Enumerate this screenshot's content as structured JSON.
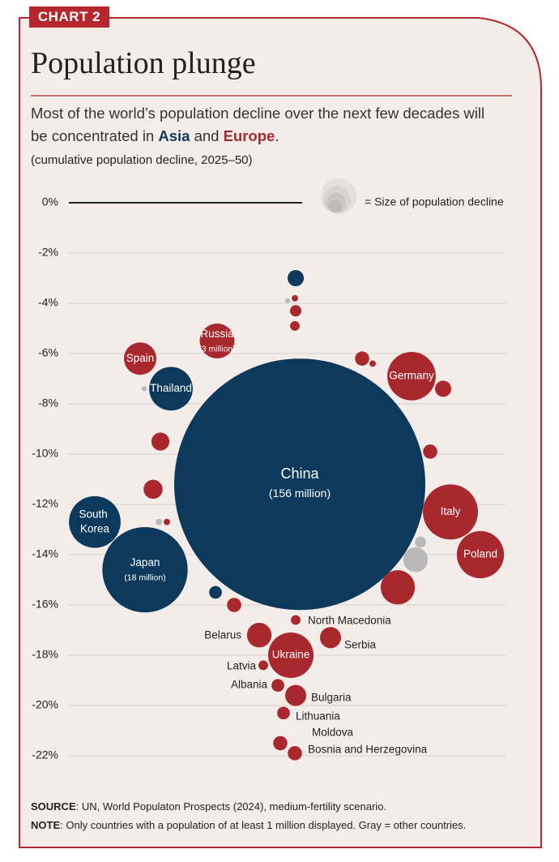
{
  "chart_data": {
    "type": "bubble",
    "tag": "CHART 2",
    "title": "Population plunge",
    "subtitle": [
      {
        "text": "Most of the world’s population decline over the next few decades will be concentrated in "
      },
      {
        "text": "Asia",
        "color": "#0d3a5c"
      },
      {
        "text": " and "
      },
      {
        "text": "Europe",
        "color": "#a8282d"
      },
      {
        "text": "."
      }
    ],
    "note": "(cumulative population decline, 2025–50)",
    "size_legend": "= Size of population decline",
    "ylim": [
      -22,
      0
    ],
    "yticks": [
      {
        "value": 0,
        "label": "0%"
      },
      {
        "value": -2,
        "label": "-2%"
      },
      {
        "value": -4,
        "label": "-4%"
      },
      {
        "value": -6,
        "label": "-6%"
      },
      {
        "value": -8,
        "label": "-8%"
      },
      {
        "value": -10,
        "label": "-10%"
      },
      {
        "value": -12,
        "label": "-12%"
      },
      {
        "value": -14,
        "label": "-14%"
      },
      {
        "value": -16,
        "label": "-16%"
      },
      {
        "value": -18,
        "label": "-18%"
      },
      {
        "value": -20,
        "label": "-20%"
      },
      {
        "value": -22,
        "label": "-22%"
      }
    ],
    "grid": true,
    "points": [
      {
        "name": null,
        "y": -3.0,
        "size": 0.65,
        "color": "#0d3a5c"
      },
      {
        "name": null,
        "y": -3.9,
        "size": 0.06,
        "color": "#b9b9b9"
      },
      {
        "name": null,
        "y": -3.8,
        "size": 0.1,
        "color": "#a8282d"
      },
      {
        "name": null,
        "y": -4.3,
        "size": 0.32,
        "color": "#a8282d"
      },
      {
        "name": null,
        "y": -4.9,
        "size": 0.23,
        "color": "#a8282d"
      },
      {
        "name": "Russia",
        "y": -5.5,
        "size": 3,
        "size_label": "(3 million)",
        "color": "#a8282d"
      },
      {
        "name": "Spain",
        "y": -6.2,
        "size": 2.6,
        "color": "#a8282d"
      },
      {
        "name": "Thailand",
        "y": -7.4,
        "size": 4.7,
        "color": "#0d3a5c"
      },
      {
        "name": null,
        "y": -7.4,
        "size": 0.06,
        "color": "#b9b9b9"
      },
      {
        "name": null,
        "y": -6.2,
        "size": 0.5,
        "color": "#a8282d"
      },
      {
        "name": null,
        "y": -6.4,
        "size": 0.1,
        "color": "#a8282d"
      },
      {
        "name": "Germany",
        "y": -6.9,
        "size": 5.8,
        "color": "#a8282d"
      },
      {
        "name": null,
        "y": -7.4,
        "size": 0.65,
        "color": "#a8282d"
      },
      {
        "name": null,
        "y": -9.5,
        "size": 0.8,
        "color": "#a8282d"
      },
      {
        "name": null,
        "y": -9.9,
        "size": 0.5,
        "color": "#a8282d"
      },
      {
        "name": "China",
        "y": -11.2,
        "size": 156,
        "size_label": "(156 million)",
        "color": "#0d3a5c"
      },
      {
        "name": null,
        "y": -11.4,
        "size": 0.9,
        "color": "#a8282d"
      },
      {
        "name": "South Korea",
        "y": -12.7,
        "size": 6.6,
        "color": "#0d3a5c"
      },
      {
        "name": null,
        "y": -12.7,
        "size": 0.1,
        "color": "#b9b9b9"
      },
      {
        "name": null,
        "y": -12.7,
        "size": 0.1,
        "color": "#a8282d"
      },
      {
        "name": "Italy",
        "y": -12.3,
        "size": 7.5,
        "color": "#a8282d"
      },
      {
        "name": null,
        "y": -13.5,
        "size": 0.3,
        "color": "#b9b9b9"
      },
      {
        "name": null,
        "y": -14.2,
        "size": 1.5,
        "color": "#b9b9b9"
      },
      {
        "name": "Poland",
        "y": -14.0,
        "size": 5.5,
        "color": "#a8282d"
      },
      {
        "name": "Japan",
        "y": -14.6,
        "size": 18,
        "size_label": "(18 million)",
        "color": "#0d3a5c"
      },
      {
        "name": null,
        "y": -15.3,
        "size": 2.9,
        "color": "#a8282d"
      },
      {
        "name": null,
        "y": -15.5,
        "size": 0.4,
        "color": "#0d3a5c"
      },
      {
        "name": null,
        "y": -16.0,
        "size": 0.5,
        "color": "#a8282d"
      },
      {
        "name": "North Macedonia",
        "y": -16.6,
        "size": 0.23,
        "color": "#a8282d"
      },
      {
        "name": "Belarus",
        "y": -17.2,
        "size": 1.5,
        "color": "#a8282d"
      },
      {
        "name": "Serbia",
        "y": -17.3,
        "size": 1.1,
        "color": "#a8282d"
      },
      {
        "name": "Ukraine",
        "y": -18.0,
        "size": 5.1,
        "color": "#a8282d"
      },
      {
        "name": "Latvia",
        "y": -18.4,
        "size": 0.23,
        "color": "#a8282d"
      },
      {
        "name": "Albania",
        "y": -19.2,
        "size": 0.4,
        "color": "#a8282d"
      },
      {
        "name": "Bulgaria",
        "y": -19.6,
        "size": 1.1,
        "color": "#a8282d"
      },
      {
        "name": "Lithuania",
        "y": -20.3,
        "size": 0.4,
        "color": "#a8282d"
      },
      {
        "name": "Moldova",
        "y": -21.5,
        "size": 0.5,
        "color": "#a8282d"
      },
      {
        "name": "Bosnia and Herzegovina",
        "y": -21.9,
        "size": 0.5,
        "color": "#a8282d"
      }
    ],
    "source": {
      "label": "SOURCE",
      "text": ": UN, World Populaton Prospects (2024), medium-fertility scenario."
    },
    "footnote": {
      "label": "NOTE",
      "text": ": Only countries with a population of at least 1 million displayed. Gray = other countries."
    }
  }
}
